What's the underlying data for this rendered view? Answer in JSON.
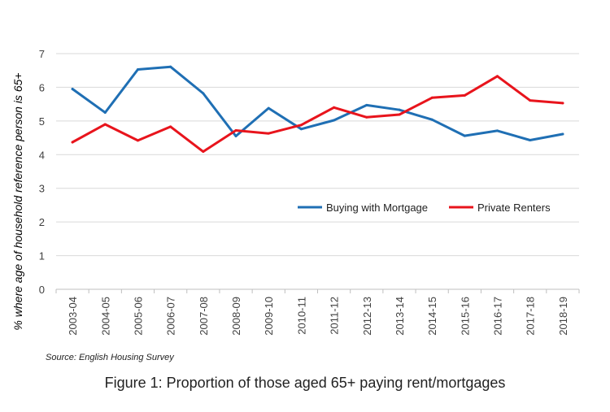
{
  "chart_data": {
    "type": "line",
    "categories": [
      "2003-04",
      "2004-05",
      "2005-06",
      "2006-07",
      "2007-08",
      "2008-09",
      "2009-10",
      "2010-11",
      "2011-12",
      "2012-13",
      "2013-14",
      "2014-15",
      "2015-16",
      "2016-17",
      "2017-18",
      "2018-19"
    ],
    "series": [
      {
        "name": "Buying with Mortgage",
        "color": "#1f6fb4",
        "values": [
          5.95,
          5.25,
          6.53,
          6.61,
          5.82,
          4.55,
          5.38,
          4.76,
          5.02,
          5.47,
          5.33,
          5.04,
          4.56,
          4.71,
          4.43,
          4.61
        ]
      },
      {
        "name": "Private Renters",
        "color": "#e8141c",
        "values": [
          4.37,
          4.9,
          4.42,
          4.83,
          4.09,
          4.72,
          4.63,
          4.88,
          5.4,
          5.11,
          5.19,
          5.69,
          5.76,
          6.33,
          5.61,
          5.53
        ]
      }
    ],
    "ylabel": "% where age of household reference person is 65+",
    "xlabel": "",
    "ylim": [
      0,
      7
    ],
    "yticks": [
      0,
      1,
      2,
      3,
      4,
      5,
      6,
      7
    ],
    "grid": true,
    "legend_position": "center-right"
  },
  "source": "Source: English Housing Survey",
  "caption": "Figure 1: Proportion of those aged 65+ paying rent/mortgages"
}
